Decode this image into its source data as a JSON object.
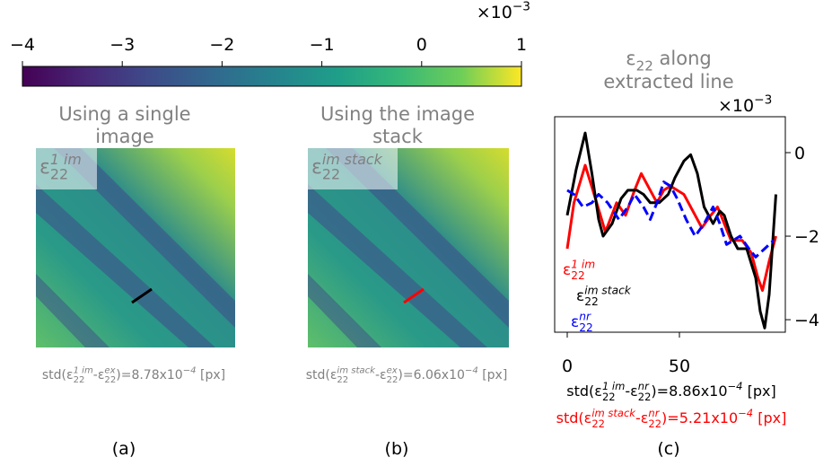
{
  "chart_data": [
    {
      "type": "colorbar",
      "colormap": "viridis",
      "xlim": [
        -4,
        1
      ],
      "xticks": [
        {
          "value": -4,
          "label": "−4"
        },
        {
          "value": -3,
          "label": "−3"
        },
        {
          "value": -2,
          "label": "−2"
        },
        {
          "value": -1,
          "label": "−1"
        },
        0,
        1
      ],
      "offset_text": [
        {
          "text": "×10"
        },
        {
          "text": "−3",
          "pos": "sup"
        }
      ]
    },
    {
      "type": "image",
      "title": [
        "Using a single",
        "image"
      ],
      "label": [
        {
          "text": "ε"
        },
        {
          "text": "1 im",
          "pos": "sup"
        },
        {
          "text": "22",
          "pos": "sub"
        }
      ],
      "line_color": "#000000",
      "caption": [
        {
          "text": "std(ε"
        },
        {
          "text": "1 im",
          "pos": "sup"
        },
        {
          "text": "22",
          "pos": "sub"
        },
        {
          "text": "-ε"
        },
        {
          "text": "ex",
          "pos": "sup"
        },
        {
          "text": "22",
          "pos": "sub"
        },
        {
          "text": ")=8.78x10"
        },
        {
          "text": "−4",
          "pos": "sup"
        },
        {
          "text": " [px]"
        }
      ],
      "panel": "(a)"
    },
    {
      "type": "image",
      "title": [
        "Using the image",
        "stack"
      ],
      "label": [
        {
          "text": "ε"
        },
        {
          "text": "im stack",
          "pos": "sup"
        },
        {
          "text": "22",
          "pos": "sub"
        }
      ],
      "line_color": "#ff0000",
      "caption": [
        {
          "text": "std(ε"
        },
        {
          "text": "im stack",
          "pos": "sup"
        },
        {
          "text": "22",
          "pos": "sub"
        },
        {
          "text": "-ε"
        },
        {
          "text": "ex",
          "pos": "sup"
        },
        {
          "text": "22",
          "pos": "sub"
        },
        {
          "text": ")=6.06x10"
        },
        {
          "text": "−4",
          "pos": "sup"
        },
        {
          "text": " [px]"
        }
      ],
      "panel": "(b)"
    },
    {
      "type": "line",
      "title": [
        [
          {
            "text": "ε"
          },
          {
            "text": "22",
            "pos": "sub"
          },
          {
            "text": " along"
          }
        ],
        [
          {
            "text": "extracted line"
          }
        ]
      ],
      "offset_text": [
        {
          "text": "×10"
        },
        {
          "text": "−3",
          "pos": "sup"
        }
      ],
      "xlim": [
        -5.6,
        97.2
      ],
      "xticks": [
        0,
        50
      ],
      "ylim": [
        -4.3,
        0.86
      ],
      "yticks": [
        {
          "value": -4,
          "label": "−4"
        },
        {
          "value": -2,
          "label": "−2"
        },
        0
      ],
      "series": [
        {
          "name": [
            {
              "text": "ε"
            },
            {
              "text": "1 im",
              "pos": "sup"
            },
            {
              "text": "22",
              "pos": "sub"
            }
          ],
          "color": "#ff0000",
          "dash": false,
          "x": [
            0,
            3,
            8,
            12,
            17,
            22,
            26,
            30,
            33,
            37,
            40,
            43,
            46,
            49,
            52,
            56,
            60,
            64,
            67,
            70,
            73,
            78,
            82,
            85,
            87,
            90,
            93
          ],
          "values": [
            -2.3,
            -1.2,
            -0.3,
            -1.0,
            -1.9,
            -1.2,
            -1.5,
            -0.9,
            -0.5,
            -0.9,
            -1.2,
            -0.9,
            -0.8,
            -0.9,
            -1.0,
            -1.4,
            -1.8,
            -1.5,
            -1.3,
            -1.7,
            -2.1,
            -2.1,
            -2.4,
            -3.0,
            -3.3,
            -2.6,
            -2.0
          ]
        },
        {
          "name": [
            {
              "text": "ε"
            },
            {
              "text": "im stack",
              "pos": "sup"
            },
            {
              "text": "22",
              "pos": "sub"
            }
          ],
          "color": "#000000",
          "dash": false,
          "x": [
            0,
            4,
            8,
            11,
            14,
            16,
            20,
            24,
            27,
            31,
            34,
            37,
            41,
            45,
            48,
            52,
            55,
            58,
            61,
            65,
            68,
            70,
            73,
            76,
            80,
            84,
            86,
            88,
            90,
            93
          ],
          "values": [
            -1.5,
            -0.4,
            0.47,
            -0.5,
            -1.6,
            -2.0,
            -1.7,
            -1.1,
            -0.9,
            -0.9,
            -1.0,
            -1.2,
            -1.2,
            -1.0,
            -0.6,
            -0.2,
            -0.05,
            -0.5,
            -1.3,
            -1.7,
            -1.4,
            -1.5,
            -2.0,
            -2.3,
            -2.3,
            -3.0,
            -3.8,
            -4.2,
            -3.4,
            -1.0
          ]
        },
        {
          "name": [
            {
              "text": "ε"
            },
            {
              "text": "nr",
              "pos": "sup"
            },
            {
              "text": "22",
              "pos": "sub"
            }
          ],
          "color": "#0000ff",
          "dash": true,
          "x": [
            0,
            3,
            7,
            11,
            14,
            18,
            23,
            27,
            30,
            34,
            37,
            40,
            43,
            46,
            49,
            53,
            57,
            61,
            65,
            68,
            71,
            74,
            77,
            81,
            84,
            88,
            92
          ],
          "values": [
            -0.9,
            -1.0,
            -1.3,
            -1.2,
            -1.0,
            -1.2,
            -1.6,
            -1.3,
            -1.0,
            -1.3,
            -1.6,
            -1.2,
            -0.7,
            -0.8,
            -1.1,
            -1.6,
            -2.0,
            -1.7,
            -1.3,
            -1.7,
            -2.2,
            -2.1,
            -2.0,
            -2.3,
            -2.5,
            -2.3,
            -2.1
          ]
        }
      ],
      "captions": [
        {
          "color": "#000000",
          "segments": [
            {
              "text": "std(ε"
            },
            {
              "text": "1 im",
              "pos": "sup"
            },
            {
              "text": "22",
              "pos": "sub"
            },
            {
              "text": "-ε"
            },
            {
              "text": "nr",
              "pos": "sup"
            },
            {
              "text": "22",
              "pos": "sub"
            },
            {
              "text": ")=8.86x10"
            },
            {
              "text": "−4",
              "pos": "sup"
            },
            {
              "text": " [px]"
            }
          ]
        },
        {
          "color": "#ff0000",
          "segments": [
            {
              "text": "std(ε"
            },
            {
              "text": "im stack",
              "pos": "sup"
            },
            {
              "text": "22",
              "pos": "sub"
            },
            {
              "text": "-ε"
            },
            {
              "text": "nr",
              "pos": "sup"
            },
            {
              "text": "22",
              "pos": "sub"
            },
            {
              "text": ")=5.21x10"
            },
            {
              "text": "−4",
              "pos": "sup"
            },
            {
              "text": " [px]"
            }
          ]
        }
      ],
      "panel": "(c)"
    }
  ]
}
